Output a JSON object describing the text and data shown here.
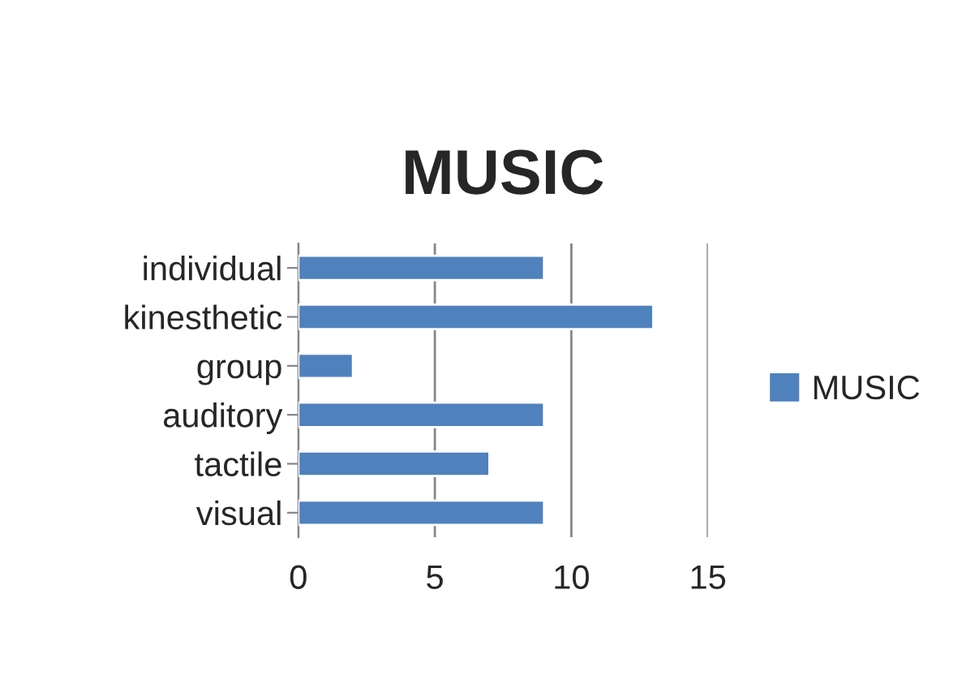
{
  "chart_data": {
    "type": "bar",
    "orientation": "horizontal",
    "title": "MUSIC",
    "categories": [
      "individual",
      "kinesthetic",
      "group",
      "auditory",
      "tactile",
      "visual"
    ],
    "series": [
      {
        "name": "MUSIC",
        "color": "#4f81bd",
        "values": [
          9,
          13,
          2,
          9,
          7,
          9
        ]
      }
    ],
    "xlim": [
      0,
      15
    ],
    "xticks": [
      0,
      5,
      10,
      15
    ],
    "grid": "x",
    "legend": "right"
  }
}
